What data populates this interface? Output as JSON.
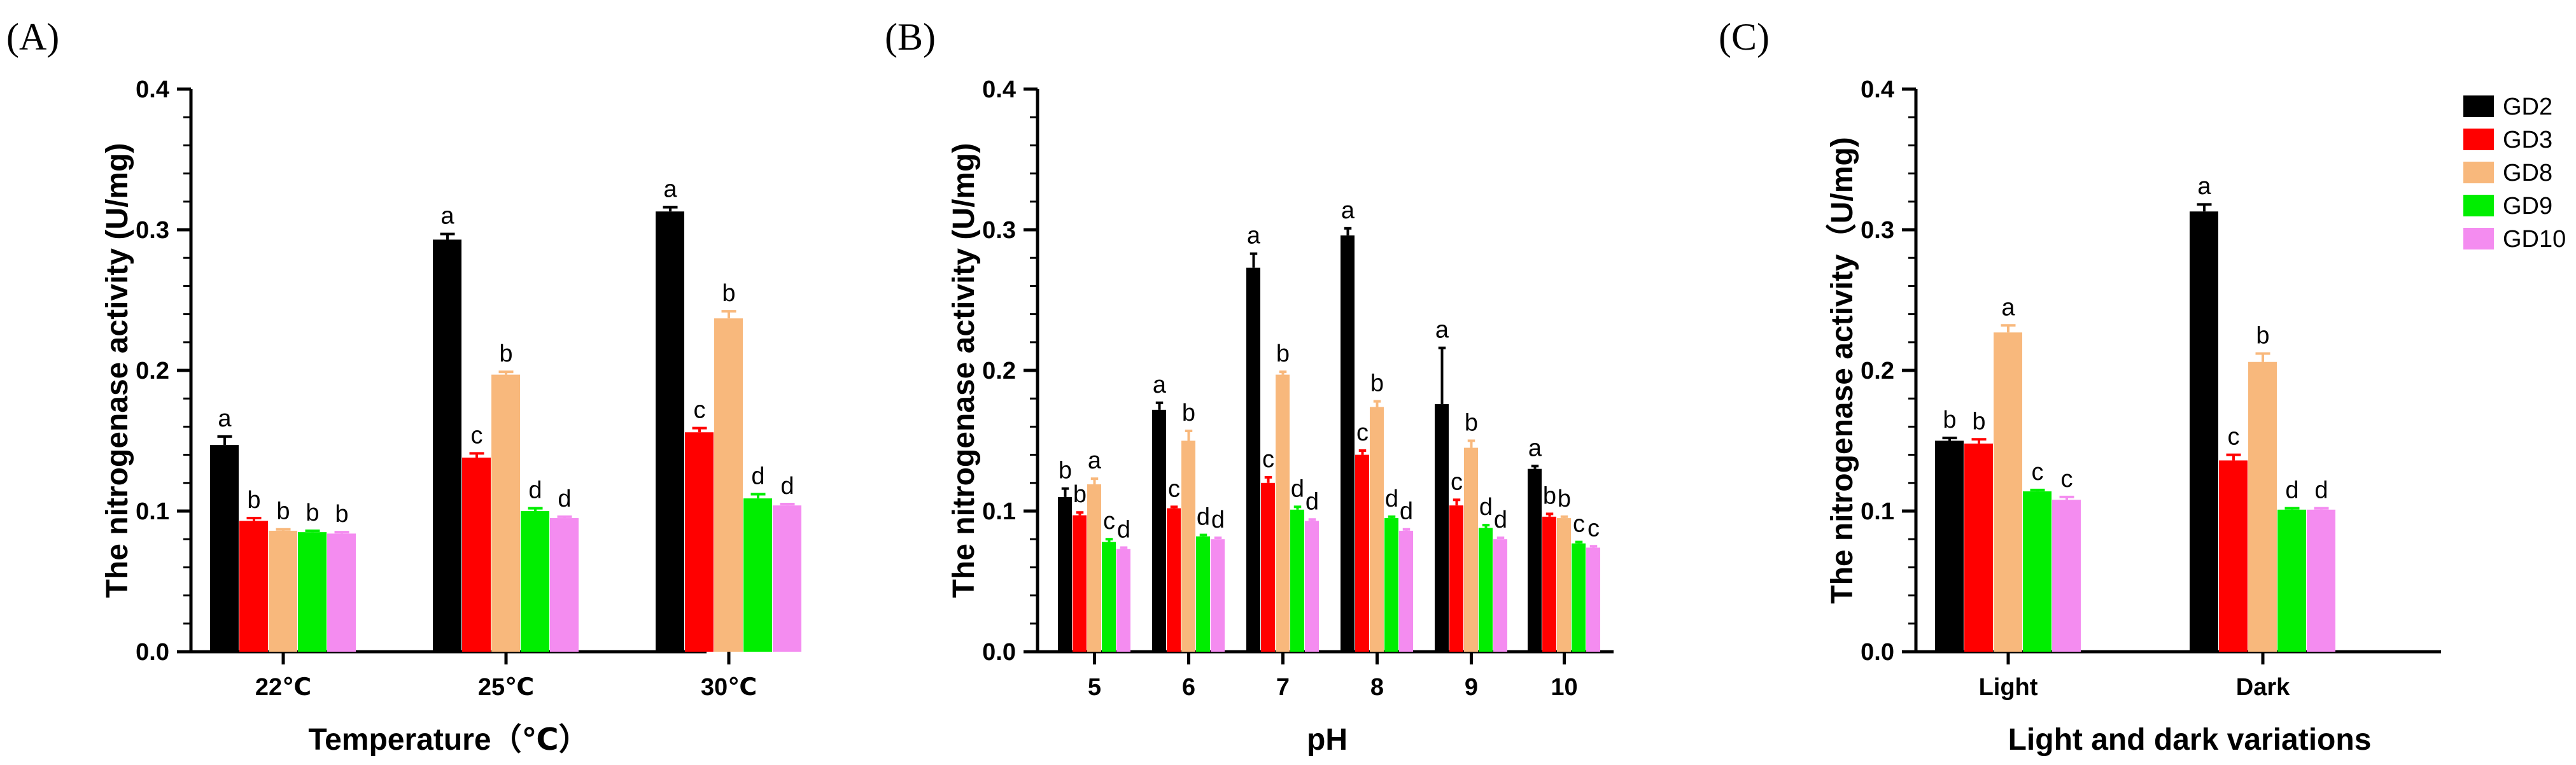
{
  "colors": {
    "GD2": "#000000",
    "GD3": "#ff0000",
    "GD8": "#f8b87c",
    "GD9": "#00ee00",
    "GD10": "#f48cf0"
  },
  "legend": [
    "GD2",
    "GD3",
    "GD8",
    "GD9",
    "GD10"
  ],
  "chart_data": [
    {
      "type": "bar",
      "panel_label": "(A)",
      "xlabel": "Temperature（℃）",
      "ylabel": "The nitrogenase activity (U/mg)",
      "ylim": [
        0,
        0.4
      ],
      "yticks": [
        "0.0",
        "0.1",
        "0.2",
        "0.3",
        "0.4"
      ],
      "categories": [
        "22℃",
        "25℃",
        "30℃"
      ],
      "series": [
        {
          "name": "GD2",
          "values": [
            0.147,
            0.293,
            0.313
          ],
          "errors": [
            0.006,
            0.004,
            0.003
          ],
          "letters": [
            "a",
            "a",
            "a"
          ]
        },
        {
          "name": "GD3",
          "values": [
            0.093,
            0.138,
            0.156
          ],
          "errors": [
            0.002,
            0.003,
            0.003
          ],
          "letters": [
            "b",
            "c",
            "c"
          ]
        },
        {
          "name": "GD8",
          "values": [
            0.086,
            0.197,
            0.237
          ],
          "errors": [
            0.001,
            0.002,
            0.005
          ],
          "letters": [
            "b",
            "b",
            "b"
          ]
        },
        {
          "name": "GD9",
          "values": [
            0.085,
            0.1,
            0.109
          ],
          "errors": [
            0.001,
            0.002,
            0.003
          ],
          "letters": [
            "b",
            "d",
            "d"
          ]
        },
        {
          "name": "GD10",
          "values": [
            0.084,
            0.095,
            0.104
          ],
          "errors": [
            0.001,
            0.001,
            0.001
          ],
          "letters": [
            "b",
            "d",
            "d"
          ]
        }
      ]
    },
    {
      "type": "bar",
      "panel_label": "(B)",
      "xlabel": "pH",
      "ylabel": "The nitrogenase activity (U/mg)",
      "ylim": [
        0,
        0.4
      ],
      "yticks": [
        "0.0",
        "0.1",
        "0.2",
        "0.3",
        "0.4"
      ],
      "categories": [
        "5",
        "6",
        "7",
        "8",
        "9",
        "10"
      ],
      "series": [
        {
          "name": "GD2",
          "values": [
            0.11,
            0.172,
            0.273,
            0.296,
            0.176,
            0.13
          ],
          "errors": [
            0.006,
            0.005,
            0.01,
            0.005,
            0.04,
            0.002
          ],
          "letters": [
            "b",
            "a",
            "a",
            "a",
            "a",
            "a"
          ]
        },
        {
          "name": "GD3",
          "values": [
            0.097,
            0.102,
            0.12,
            0.14,
            0.104,
            0.096
          ],
          "errors": [
            0.002,
            0.001,
            0.004,
            0.003,
            0.004,
            0.002
          ],
          "letters": [
            "b",
            "c",
            "c",
            "c",
            "c",
            "b"
          ]
        },
        {
          "name": "GD8",
          "values": [
            0.119,
            0.15,
            0.197,
            0.174,
            0.145,
            0.095
          ],
          "errors": [
            0.004,
            0.007,
            0.002,
            0.004,
            0.005,
            0.001
          ],
          "letters": [
            "a",
            "b",
            "b",
            "b",
            "b",
            "b"
          ]
        },
        {
          "name": "GD9",
          "values": [
            0.078,
            0.082,
            0.101,
            0.095,
            0.088,
            0.077
          ],
          "errors": [
            0.002,
            0.001,
            0.002,
            0.001,
            0.002,
            0.001
          ],
          "letters": [
            "c",
            "d",
            "d",
            "d",
            "d",
            "c"
          ]
        },
        {
          "name": "GD10",
          "values": [
            0.073,
            0.08,
            0.093,
            0.086,
            0.08,
            0.074
          ],
          "errors": [
            0.001,
            0.001,
            0.001,
            0.001,
            0.001,
            0.001
          ],
          "letters": [
            "d",
            "d",
            "d",
            "d",
            "d",
            "c"
          ]
        }
      ]
    },
    {
      "type": "bar",
      "panel_label": "(C)",
      "xlabel": "Light and dark variations",
      "ylabel": "The nitrogenase activity（U/mg)",
      "ylim": [
        0,
        0.4
      ],
      "yticks": [
        "0.0",
        "0.1",
        "0.2",
        "0.3",
        "0.4"
      ],
      "categories": [
        "Light",
        "Dark"
      ],
      "series": [
        {
          "name": "GD2",
          "values": [
            0.15,
            0.313
          ],
          "errors": [
            0.002,
            0.005
          ],
          "letters": [
            "b",
            "a"
          ]
        },
        {
          "name": "GD3",
          "values": [
            0.148,
            0.136
          ],
          "errors": [
            0.003,
            0.004
          ],
          "letters": [
            "b",
            "c"
          ]
        },
        {
          "name": "GD8",
          "values": [
            0.227,
            0.206
          ],
          "errors": [
            0.005,
            0.006
          ],
          "letters": [
            "a",
            "b"
          ]
        },
        {
          "name": "GD9",
          "values": [
            0.114,
            0.101
          ],
          "errors": [
            0.001,
            0.001
          ],
          "letters": [
            "c",
            "d"
          ]
        },
        {
          "name": "GD10",
          "values": [
            0.108,
            0.101
          ],
          "errors": [
            0.002,
            0.001
          ],
          "letters": [
            "c",
            "d"
          ]
        }
      ]
    }
  ]
}
